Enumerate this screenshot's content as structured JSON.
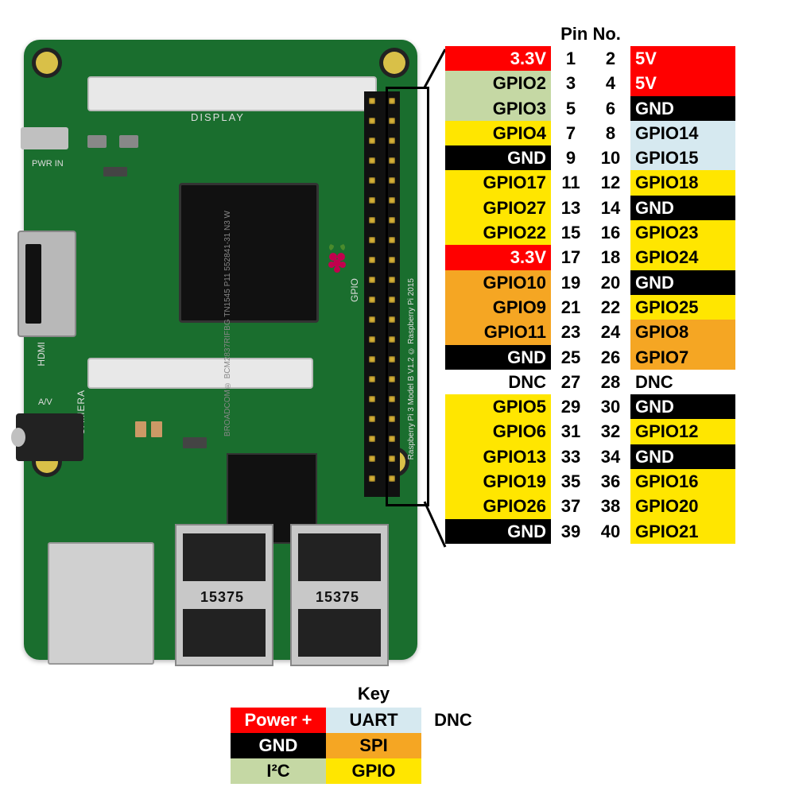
{
  "title": "Pin No.",
  "board": {
    "display_label": "DISPLAY",
    "camera_label": "CAMERA",
    "pwr_label": "PWR IN",
    "hdmi_label": "HDMI",
    "av_label": "A/V",
    "gpio_label": "GPIO",
    "model_text": "Raspberry Pi 3 Model B V1.2\n© Raspberry Pi 2015",
    "soc_text": "BROADCOM®\nBCM2837RIFBG\nTN1545 P11\n552841-31 N3 W",
    "usb_date": "15375"
  },
  "colors": {
    "power": {
      "bg": "#ff0000",
      "fg": "#ffffff"
    },
    "gnd": {
      "bg": "#000000",
      "fg": "#ffffff"
    },
    "i2c": {
      "bg": "#c5d8a4",
      "fg": "#000000"
    },
    "uart": {
      "bg": "#d6e9f0",
      "fg": "#000000"
    },
    "spi": {
      "bg": "#f5a623",
      "fg": "#000000"
    },
    "gpio": {
      "bg": "#ffe600",
      "fg": "#000000"
    },
    "dnc": {
      "bg": "#ffffff",
      "fg": "#000000"
    }
  },
  "pins": [
    {
      "l": "3.3V",
      "lt": "power",
      "n1": 1,
      "n2": 2,
      "r": "5V",
      "rt": "power"
    },
    {
      "l": "GPIO2",
      "lt": "i2c",
      "n1": 3,
      "n2": 4,
      "r": "5V",
      "rt": "power"
    },
    {
      "l": "GPIO3",
      "lt": "i2c",
      "n1": 5,
      "n2": 6,
      "r": "GND",
      "rt": "gnd"
    },
    {
      "l": "GPIO4",
      "lt": "gpio",
      "n1": 7,
      "n2": 8,
      "r": "GPIO14",
      "rt": "uart"
    },
    {
      "l": "GND",
      "lt": "gnd",
      "n1": 9,
      "n2": 10,
      "r": "GPIO15",
      "rt": "uart"
    },
    {
      "l": "GPIO17",
      "lt": "gpio",
      "n1": 11,
      "n2": 12,
      "r": "GPIO18",
      "rt": "gpio"
    },
    {
      "l": "GPIO27",
      "lt": "gpio",
      "n1": 13,
      "n2": 14,
      "r": "GND",
      "rt": "gnd"
    },
    {
      "l": "GPIO22",
      "lt": "gpio",
      "n1": 15,
      "n2": 16,
      "r": "GPIO23",
      "rt": "gpio"
    },
    {
      "l": "3.3V",
      "lt": "power",
      "n1": 17,
      "n2": 18,
      "r": "GPIO24",
      "rt": "gpio"
    },
    {
      "l": "GPIO10",
      "lt": "spi",
      "n1": 19,
      "n2": 20,
      "r": "GND",
      "rt": "gnd"
    },
    {
      "l": "GPIO9",
      "lt": "spi",
      "n1": 21,
      "n2": 22,
      "r": "GPIO25",
      "rt": "gpio"
    },
    {
      "l": "GPIO11",
      "lt": "spi",
      "n1": 23,
      "n2": 24,
      "r": "GPIO8",
      "rt": "spi"
    },
    {
      "l": "GND",
      "lt": "gnd",
      "n1": 25,
      "n2": 26,
      "r": "GPIO7",
      "rt": "spi"
    },
    {
      "l": "DNC",
      "lt": "dnc",
      "n1": 27,
      "n2": 28,
      "r": "DNC",
      "rt": "dnc"
    },
    {
      "l": "GPIO5",
      "lt": "gpio",
      "n1": 29,
      "n2": 30,
      "r": "GND",
      "rt": "gnd"
    },
    {
      "l": "GPIO6",
      "lt": "gpio",
      "n1": 31,
      "n2": 32,
      "r": "GPIO12",
      "rt": "gpio"
    },
    {
      "l": "GPIO13",
      "lt": "gpio",
      "n1": 33,
      "n2": 34,
      "r": "GND",
      "rt": "gnd"
    },
    {
      "l": "GPIO19",
      "lt": "gpio",
      "n1": 35,
      "n2": 36,
      "r": "GPIO16",
      "rt": "gpio"
    },
    {
      "l": "GPIO26",
      "lt": "gpio",
      "n1": 37,
      "n2": 38,
      "r": "GPIO20",
      "rt": "gpio"
    },
    {
      "l": "GND",
      "lt": "gnd",
      "n1": 39,
      "n2": 40,
      "r": "GPIO21",
      "rt": "gpio"
    }
  ],
  "key": {
    "title": "Key",
    "rows": [
      [
        {
          "label": "Power +",
          "type": "power"
        },
        {
          "label": "UART",
          "type": "uart"
        },
        {
          "label": "DNC",
          "type": "dnc"
        }
      ],
      [
        {
          "label": "GND",
          "type": "gnd"
        },
        {
          "label": "SPI",
          "type": "spi"
        },
        null
      ],
      [
        {
          "label": "I²C",
          "type": "i2c"
        },
        {
          "label": "GPIO",
          "type": "gpio"
        },
        null
      ]
    ]
  }
}
